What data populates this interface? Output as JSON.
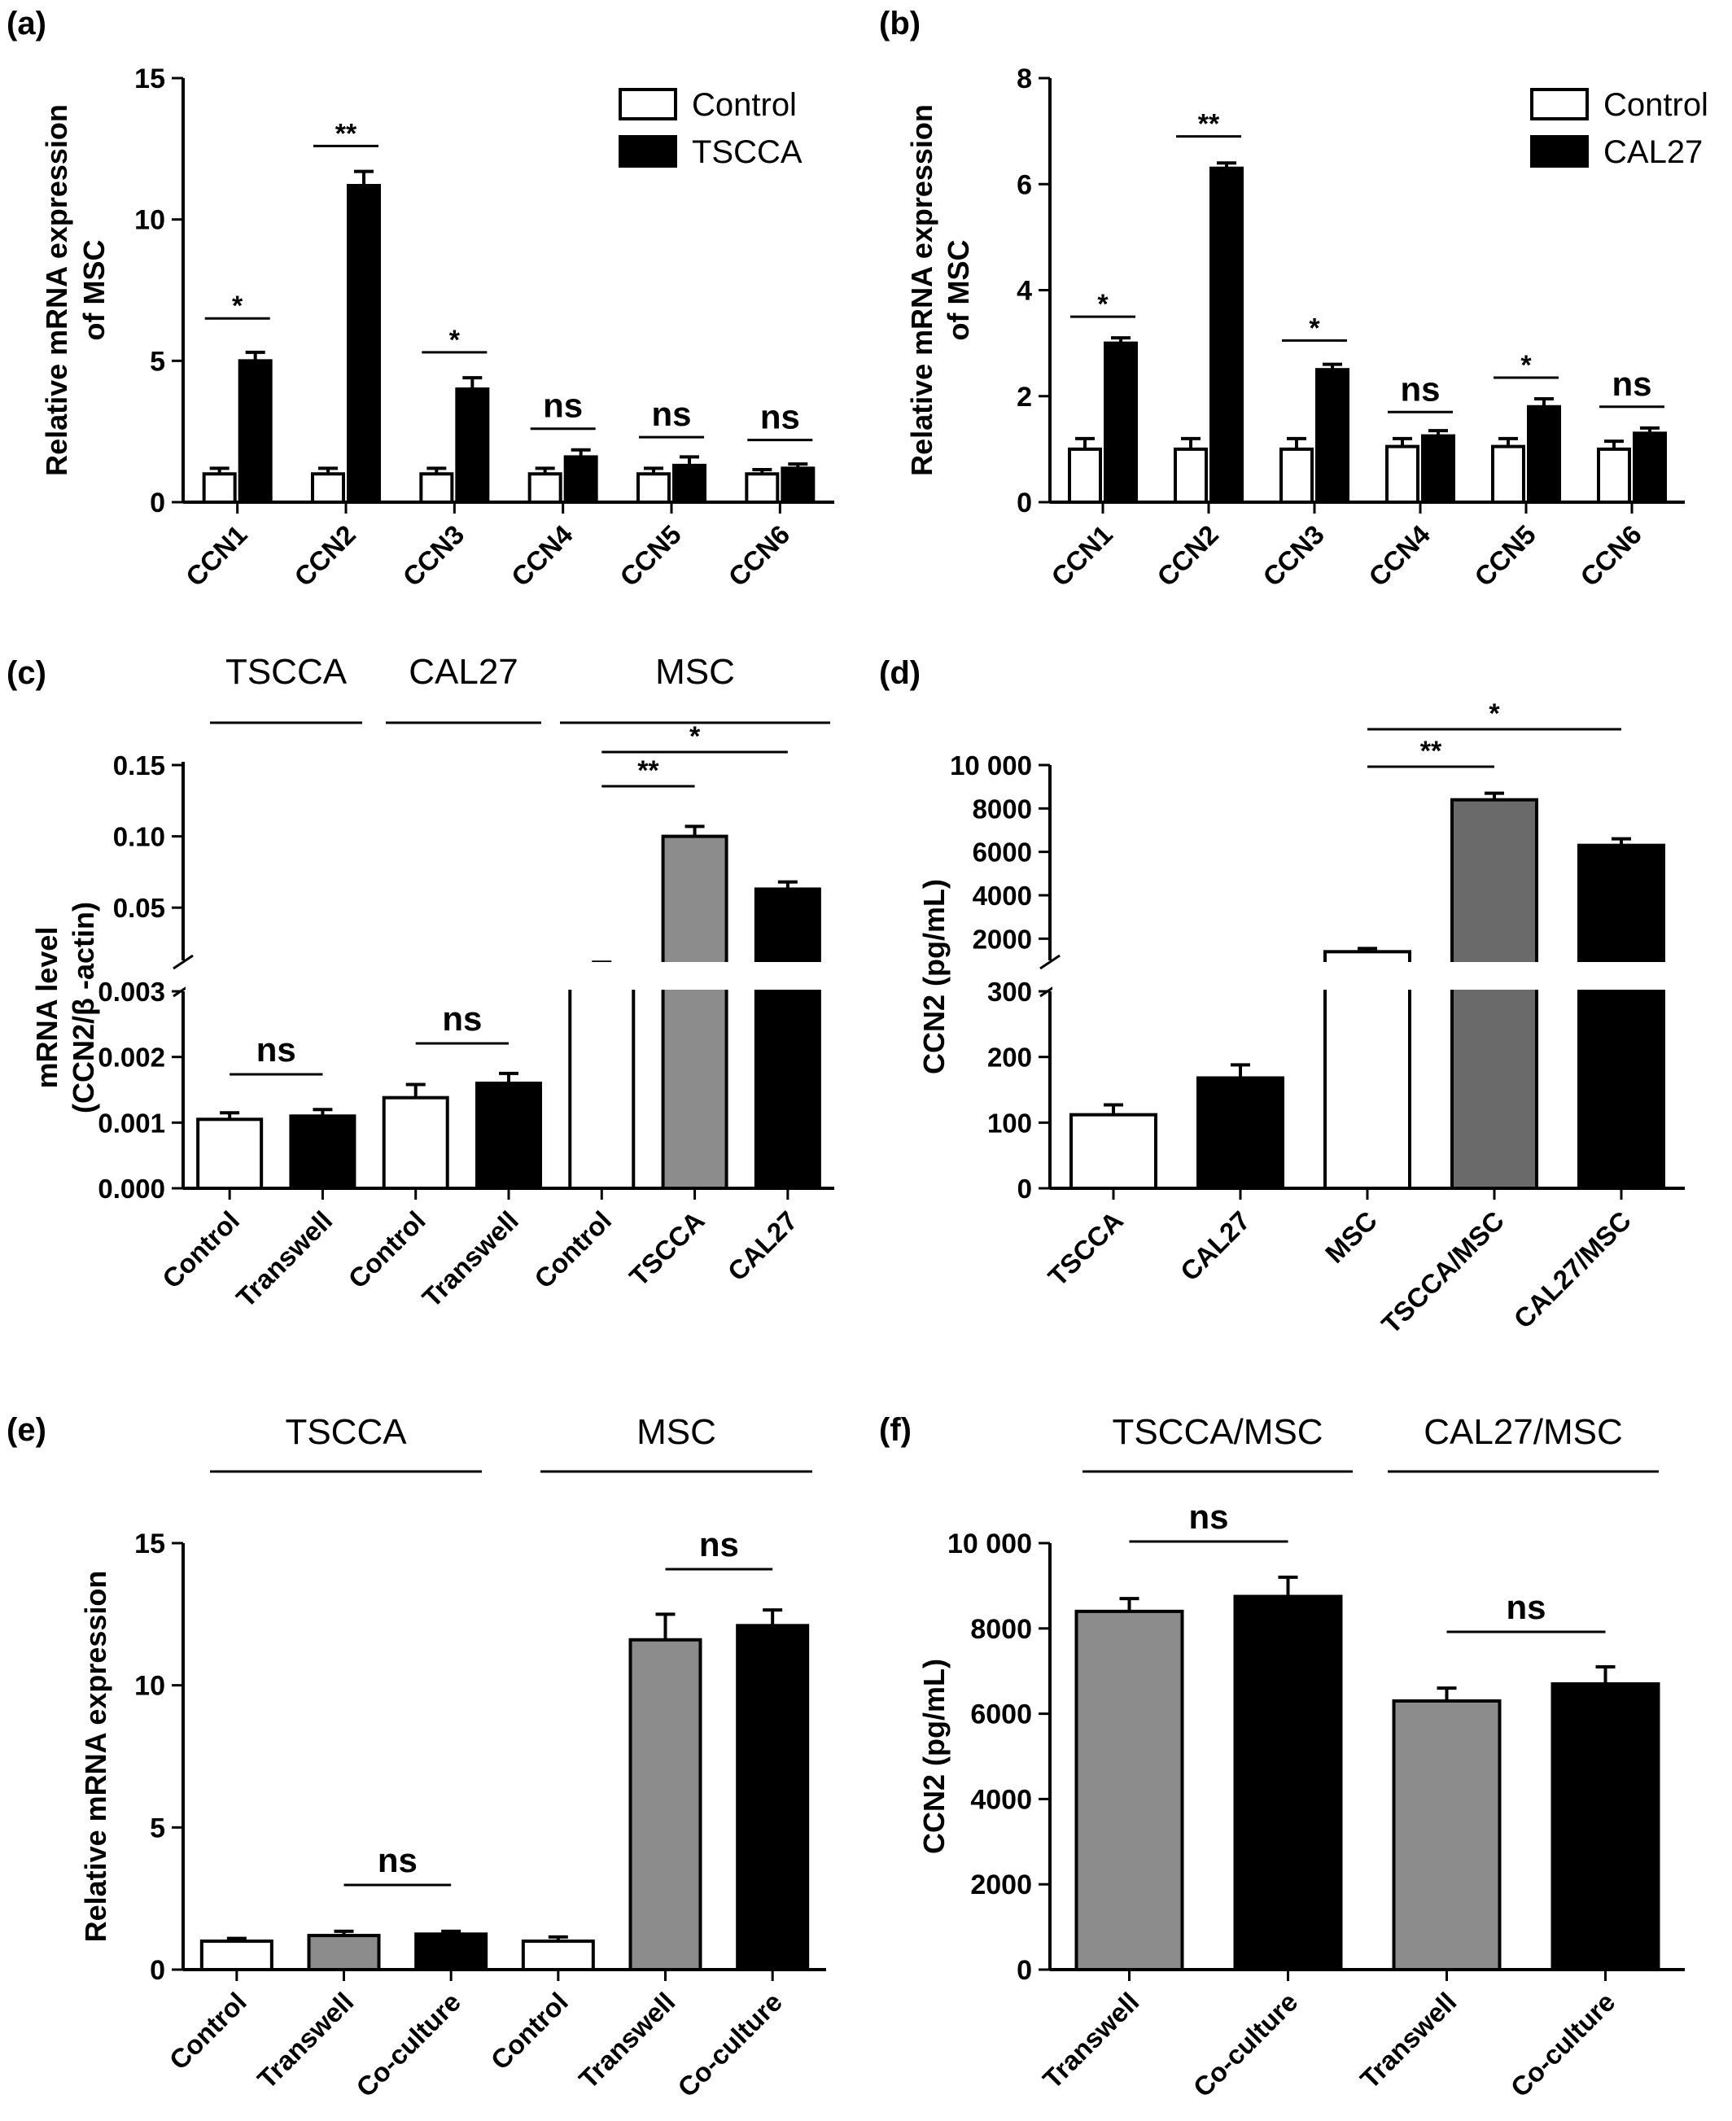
{
  "colors": {
    "white": "#ffffff",
    "black": "#000000",
    "gray": "#8c8c8c",
    "dark_gray": "#6a6a6a"
  },
  "chart_data": [
    {
      "panel": "(a)",
      "type": "bar",
      "ylabel_lines": [
        "Relative mRNA expression",
        "of MSC"
      ],
      "ylim": [
        0,
        15
      ],
      "yticks": [
        0,
        5,
        10,
        15
      ],
      "categories": [
        "CCN1",
        "CCN2",
        "CCN3",
        "CCN4",
        "CCN5",
        "CCN6"
      ],
      "series": [
        {
          "name": "Control",
          "values": [
            1.0,
            1.0,
            1.0,
            1.0,
            1.0,
            1.0
          ],
          "errors": [
            0.2,
            0.2,
            0.2,
            0.2,
            0.2,
            0.15
          ]
        },
        {
          "name": "TSCCA",
          "values": [
            5.0,
            11.2,
            4.0,
            1.6,
            1.3,
            1.2
          ],
          "errors": [
            0.3,
            0.5,
            0.4,
            0.25,
            0.3,
            0.15
          ]
        }
      ],
      "significance": [
        {
          "i": 0,
          "label": "*",
          "y": 6.5
        },
        {
          "i": 1,
          "label": "**",
          "y": 12.6
        },
        {
          "i": 2,
          "label": "*",
          "y": 5.3
        },
        {
          "i": 3,
          "label": "ns",
          "y": 2.6
        },
        {
          "i": 4,
          "label": "ns",
          "y": 2.3
        },
        {
          "i": 5,
          "label": "ns",
          "y": 2.2
        }
      ]
    },
    {
      "panel": "(b)",
      "type": "bar",
      "ylabel_lines": [
        "Relative mRNA expression",
        "of MSC"
      ],
      "ylim": [
        0,
        8
      ],
      "yticks": [
        0,
        2,
        4,
        6,
        8
      ],
      "categories": [
        "CCN1",
        "CCN2",
        "CCN3",
        "CCN4",
        "CCN5",
        "CCN6"
      ],
      "series": [
        {
          "name": "Control",
          "values": [
            1.0,
            1.0,
            1.0,
            1.05,
            1.05,
            1.0
          ],
          "errors": [
            0.2,
            0.2,
            0.2,
            0.15,
            0.15,
            0.15
          ]
        },
        {
          "name": "CAL27",
          "values": [
            3.0,
            6.3,
            2.5,
            1.25,
            1.8,
            1.3
          ],
          "errors": [
            0.1,
            0.1,
            0.1,
            0.1,
            0.15,
            0.1
          ]
        }
      ],
      "significance": [
        {
          "i": 0,
          "label": "*",
          "y": 3.5
        },
        {
          "i": 1,
          "label": "**",
          "y": 6.9
        },
        {
          "i": 2,
          "label": "*",
          "y": 3.05
        },
        {
          "i": 3,
          "label": "ns",
          "y": 1.7
        },
        {
          "i": 4,
          "label": "*",
          "y": 2.35
        },
        {
          "i": 5,
          "label": "ns",
          "y": 1.8
        }
      ]
    },
    {
      "panel": "(c)",
      "type": "bar",
      "ylabel_lines": [
        "mRNA level",
        "(CCN2/β -actin)"
      ],
      "broken_axis": true,
      "ylim_lower": [
        0,
        0.003
      ],
      "yticks_lower": [
        "0.000",
        "0.001",
        "0.002",
        "0.003"
      ],
      "ylim_upper": [
        0.013,
        0.15
      ],
      "yticks_upper": [
        "0.05",
        "0.10",
        "0.15"
      ],
      "group_labels": [
        "TSCCA",
        "CAL27",
        "MSC"
      ],
      "categories": [
        "Control",
        "Transwell",
        "Control",
        "Transwell",
        "Control",
        "TSCCA",
        "CAL27"
      ],
      "values": [
        0.00105,
        0.0011,
        0.00138,
        0.0016,
        0.0107,
        0.1,
        0.063
      ],
      "errors": [
        0.0001,
        0.0001,
        0.0002,
        0.00015,
        0.001,
        0.007,
        0.005
      ],
      "fills": [
        "white",
        "black",
        "white",
        "black",
        "white",
        "gray",
        "black"
      ],
      "significance": [
        {
          "label": "ns",
          "between": [
            0,
            1
          ]
        },
        {
          "label": "ns",
          "between": [
            2,
            3
          ]
        },
        {
          "label": "**",
          "between": [
            4,
            5
          ]
        },
        {
          "label": "*",
          "between": [
            4,
            6
          ]
        }
      ]
    },
    {
      "panel": "(d)",
      "type": "bar",
      "ylabel": "CCN2 (pg/mL)",
      "broken_axis": true,
      "ylim_lower": [
        0,
        300
      ],
      "yticks_lower": [
        "0",
        "100",
        "200",
        "300"
      ],
      "ylim_upper": [
        1000,
        10000
      ],
      "yticks_upper": [
        "2000",
        "4000",
        "6000",
        "8000",
        "10 000"
      ],
      "categories": [
        "TSCCA",
        "CAL27",
        "MSC",
        "TSCCA/MSC",
        "CAL27/MSC"
      ],
      "values": [
        112,
        168,
        1400,
        8400,
        6300
      ],
      "errors": [
        15,
        20,
        150,
        300,
        300
      ],
      "fills": [
        "white",
        "black",
        "white",
        "dark_gray",
        "black"
      ],
      "significance": [
        {
          "label": "**",
          "between": [
            2,
            3
          ]
        },
        {
          "label": "*",
          "between": [
            2,
            4
          ]
        }
      ]
    },
    {
      "panel": "(e)",
      "type": "bar",
      "ylabel": "Relative mRNA expression",
      "ylim": [
        0,
        15
      ],
      "yticks": [
        0,
        5,
        10,
        15
      ],
      "group_labels": [
        "TSCCA",
        "MSC"
      ],
      "categories": [
        "Control",
        "Transwell",
        "Co-culture",
        "Control",
        "Transwell",
        "Co-culture"
      ],
      "values": [
        1.0,
        1.2,
        1.25,
        1.0,
        11.6,
        12.1
      ],
      "errors": [
        0.1,
        0.15,
        0.1,
        0.15,
        0.9,
        0.55
      ],
      "fills": [
        "white",
        "gray",
        "black",
        "white",
        "gray",
        "black"
      ],
      "significance": [
        {
          "label": "ns",
          "between": [
            1,
            2
          ]
        },
        {
          "label": "ns",
          "between": [
            4,
            5
          ]
        }
      ]
    },
    {
      "panel": "(f)",
      "type": "bar",
      "ylabel": "CCN2 (pg/mL)",
      "ylim": [
        0,
        10000
      ],
      "yticks": [
        "0",
        "2000",
        "4000",
        "6000",
        "8000",
        "10 000"
      ],
      "group_labels": [
        "TSCCA/MSC",
        "CAL27/MSC"
      ],
      "categories": [
        "Transwell",
        "Co-culture",
        "Transwell",
        "Co-culture"
      ],
      "values": [
        8400,
        8750,
        6300,
        6700
      ],
      "errors": [
        300,
        450,
        300,
        400
      ],
      "fills": [
        "gray",
        "black",
        "gray",
        "black"
      ],
      "significance": [
        {
          "label": "ns",
          "between": [
            0,
            1
          ]
        },
        {
          "label": "ns",
          "between": [
            2,
            3
          ]
        }
      ]
    }
  ]
}
